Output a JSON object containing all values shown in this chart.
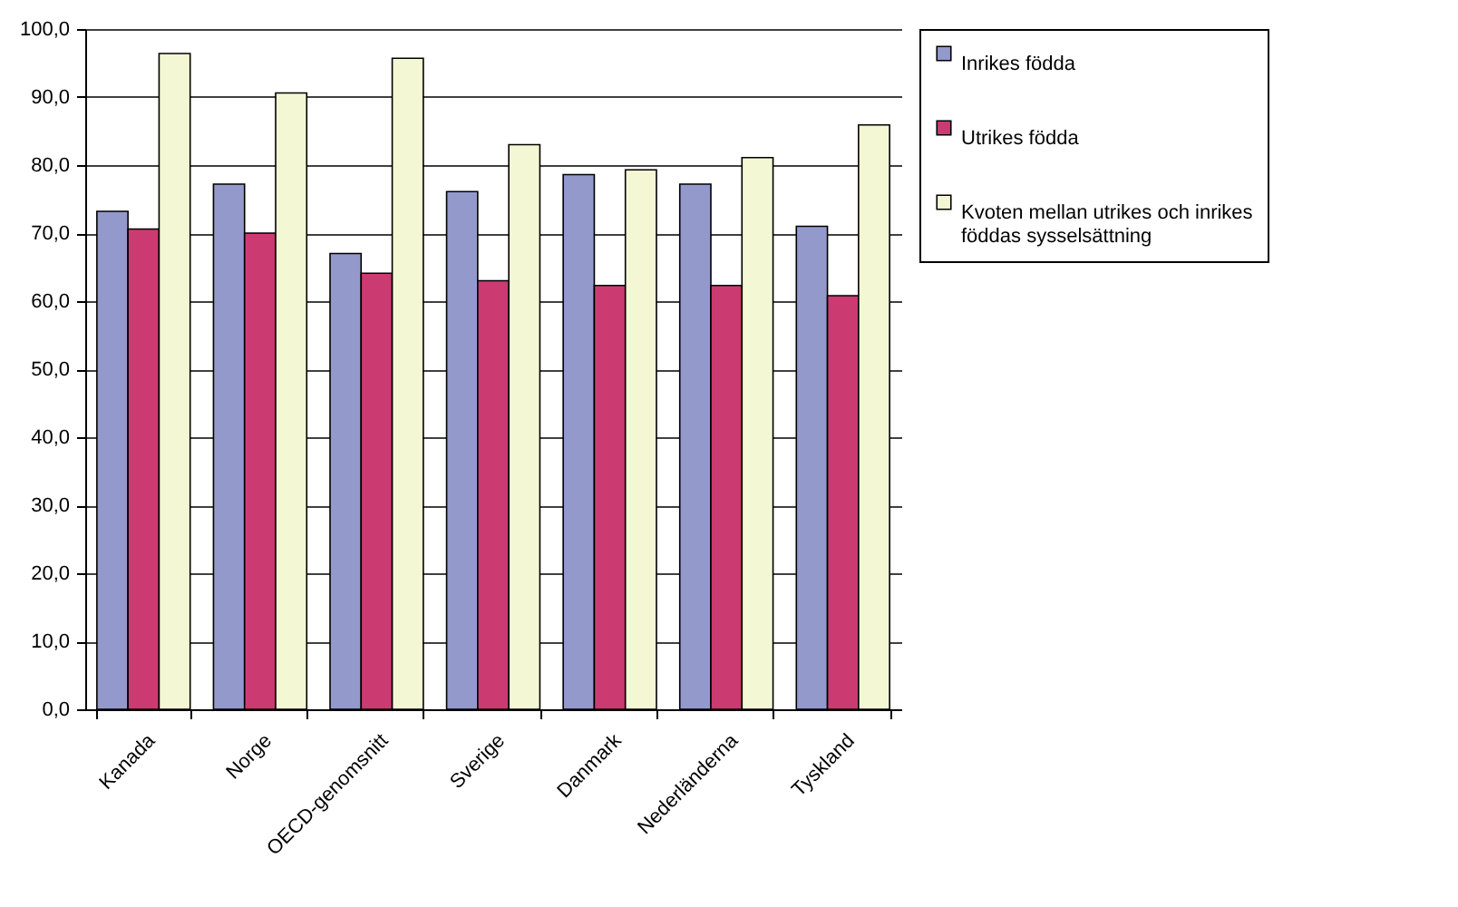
{
  "chart_data": {
    "type": "bar",
    "categories": [
      "Kanada",
      "Norge",
      "OECD-genomsnitt",
      "Sverige",
      "Danmark",
      "Nederländerna",
      "Tyskland"
    ],
    "series": [
      {
        "name": "Inrikes födda",
        "color": "#9499cc",
        "values": [
          73.2,
          77.2,
          67.0,
          76.1,
          78.6,
          77.2,
          71.0
        ]
      },
      {
        "name": "Utrikes födda",
        "color": "#cc3a72",
        "values": [
          70.6,
          70.0,
          64.1,
          63.0,
          62.3,
          62.3,
          60.8
        ]
      },
      {
        "name": "Kvoten mellan utrikes och inrikes föddas sysselsättning",
        "color": "#f4f7d4",
        "values": [
          96.4,
          90.6,
          95.7,
          83.0,
          79.3,
          81.1,
          85.9
        ]
      }
    ],
    "ylim": [
      0,
      100
    ],
    "yticks": [
      {
        "value": 0,
        "label": "0,0"
      },
      {
        "value": 10,
        "label": "10,0"
      },
      {
        "value": 20,
        "label": "20,0"
      },
      {
        "value": 30,
        "label": "30,0"
      },
      {
        "value": 40,
        "label": "40,0"
      },
      {
        "value": 50,
        "label": "50,0"
      },
      {
        "value": 60,
        "label": "60,0"
      },
      {
        "value": 70,
        "label": "70,0"
      },
      {
        "value": 80,
        "label": "80,0"
      },
      {
        "value": 90,
        "label": "90,0"
      },
      {
        "value": 100,
        "label": "100,0"
      }
    ],
    "grid": "y",
    "legend": "right"
  }
}
